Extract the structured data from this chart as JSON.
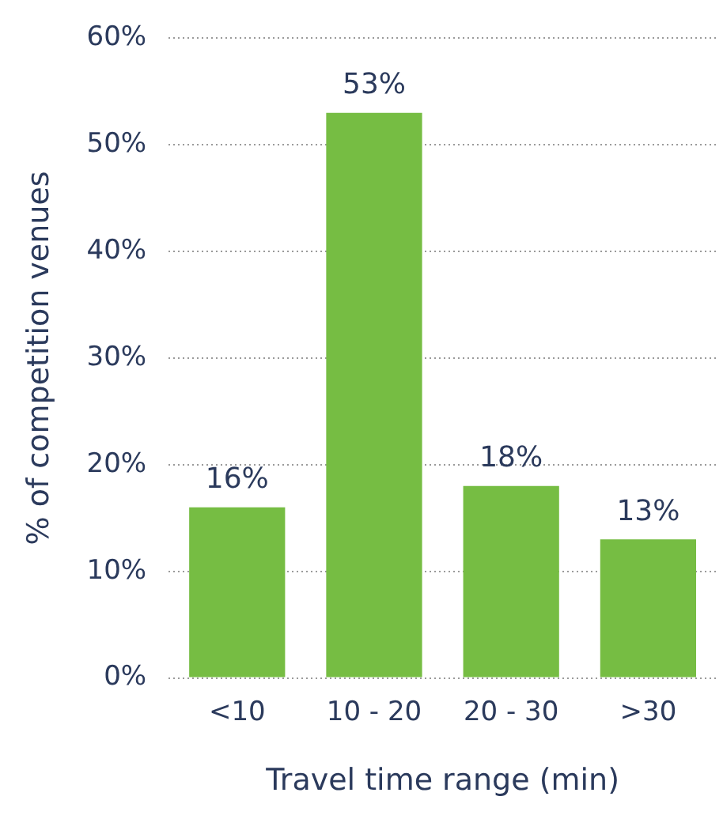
{
  "chart_data": {
    "type": "bar",
    "xlabel": "Travel time range (min)",
    "ylabel": "% of competition venues",
    "categories": [
      "<10",
      "10 - 20",
      "20 - 30",
      ">30"
    ],
    "values": [
      16,
      53,
      18,
      13
    ],
    "color": "#76bd43",
    "value_labels": [
      "16%",
      "53%",
      "18%",
      "13%"
    ],
    "ylim": [
      0,
      60
    ],
    "yticks": [
      {
        "value": 0,
        "label": "0%"
      },
      {
        "value": 10,
        "label": "10%"
      },
      {
        "value": 20,
        "label": "20%"
      },
      {
        "value": 30,
        "label": "30%"
      },
      {
        "value": 40,
        "label": "40%"
      },
      {
        "value": 50,
        "label": "50%"
      },
      {
        "value": 60,
        "label": "60%"
      }
    ],
    "grid": "y",
    "legend": false
  }
}
